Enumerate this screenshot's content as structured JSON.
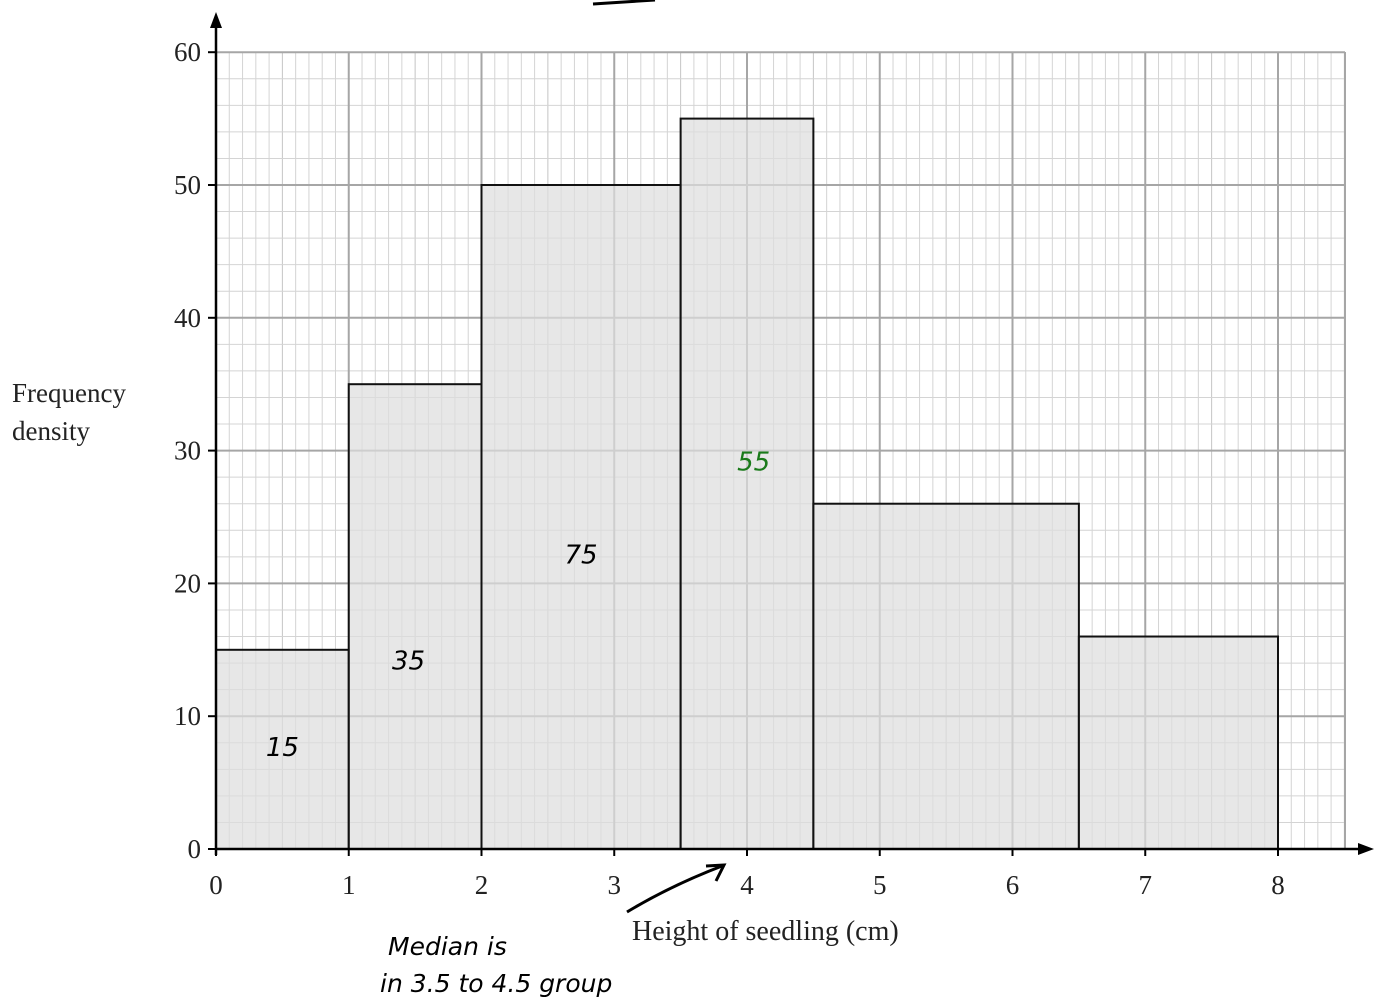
{
  "chart_data": {
    "type": "bar",
    "subtype": "histogram",
    "xlabel": "Height of seedling (cm)",
    "ylabel_lines": [
      "Frequency",
      "density"
    ],
    "xlim": [
      0,
      8.5
    ],
    "ylim": [
      0,
      60
    ],
    "x_ticks": [
      0,
      1,
      2,
      3,
      4,
      5,
      6,
      7,
      8
    ],
    "y_ticks": [
      0,
      10,
      20,
      30,
      40,
      50,
      60
    ],
    "grid": "graph paper (major 1 cm / 10 units, minor 0.1 cm / 2 units)",
    "bins": [
      {
        "from": 0,
        "to": 1,
        "frequency_density": 15
      },
      {
        "from": 1,
        "to": 2,
        "frequency_density": 35
      },
      {
        "from": 2,
        "to": 3.5,
        "frequency_density": 50
      },
      {
        "from": 3.5,
        "to": 4.5,
        "frequency_density": 55
      },
      {
        "from": 4.5,
        "to": 6.5,
        "frequency_density": 26
      },
      {
        "from": 6.5,
        "to": 8,
        "frequency_density": 16
      }
    ],
    "bar_color": "#dedede"
  },
  "annotations": {
    "bar_frequencies": [
      {
        "text": "15",
        "x": 0.5,
        "y": 7,
        "color": "#000000"
      },
      {
        "text": "35",
        "x": 1.45,
        "y": 13.5,
        "color": "#000000"
      },
      {
        "text": "75",
        "x": 2.75,
        "y": 21.5,
        "color": "#000000"
      },
      {
        "text": "55",
        "x": 4.05,
        "y": 28.5,
        "color": "#1a7a1a"
      }
    ],
    "note_lines": [
      "Median is",
      "in 3.5 to 4.5 group"
    ],
    "arrow_target_x": 3.9
  }
}
